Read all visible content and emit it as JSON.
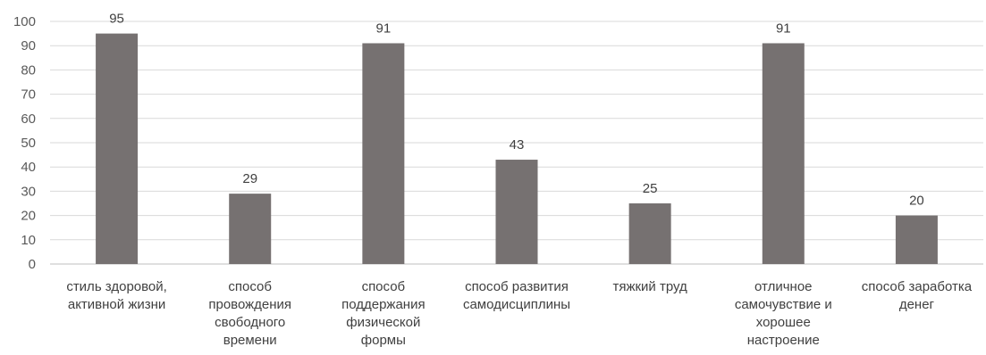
{
  "chart_data": {
    "type": "bar",
    "title": "",
    "xlabel": "",
    "ylabel": "",
    "ylim": [
      0,
      100
    ],
    "yticks": [
      0,
      10,
      20,
      30,
      40,
      50,
      60,
      70,
      80,
      90,
      100
    ],
    "grid": true,
    "legend": "none",
    "bar_color": "#767171",
    "categories": [
      [
        "стиль здоровой,",
        "активной жизни"
      ],
      [
        "способ",
        "провождения",
        "свободного",
        "времени"
      ],
      [
        "способ",
        "поддержания",
        "физической",
        "формы"
      ],
      [
        "способ развития",
        "самодисциплины"
      ],
      [
        "тяжкий труд"
      ],
      [
        "отличное",
        "самочувствие и",
        "хорошее",
        "настроение"
      ],
      [
        "способ заработка",
        "денег"
      ]
    ],
    "values": [
      95,
      29,
      91,
      43,
      25,
      91,
      20
    ]
  }
}
